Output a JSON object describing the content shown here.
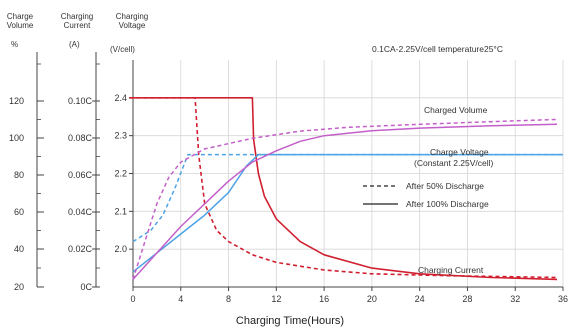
{
  "headers": {
    "volume": [
      "Charge",
      "Volume"
    ],
    "current": [
      "Charging",
      "Current"
    ],
    "voltage": [
      "Charging",
      "Voltage"
    ]
  },
  "units": {
    "volume": "%",
    "current": "(A)",
    "voltage": "(V/cell)"
  },
  "spec_text": "0.1CA-2.25V/cell   temperature25°C",
  "colors": {
    "current": "#d02030",
    "voltage": "#4da3e6",
    "volume": "#c45fc9",
    "grid": "#d6d6d6",
    "axis": "#444444"
  },
  "chart_data": {
    "type": "line",
    "title": "",
    "xlabel": "Charging Time(Hours)",
    "xlim": [
      0,
      36
    ],
    "x_ticks": [
      "0",
      "4",
      "8",
      "12",
      "16",
      "20",
      "24",
      "28",
      "32",
      "36"
    ],
    "grid": true,
    "left_axes": {
      "voltage": {
        "unit": "(V/cell)",
        "ylim": [
          1.9,
          2.5
        ],
        "ticks": [
          "2.0",
          "2.1",
          "2.2",
          "2.3",
          "2.4"
        ]
      },
      "current": {
        "unit": "(A)",
        "ticks": [
          "0C",
          "0.02C",
          "0.04C",
          "0.06C",
          "0.08C",
          "0.10C"
        ]
      },
      "volume": {
        "unit": "%",
        "ticks": [
          "20",
          "40",
          "60",
          "80",
          "100",
          "120"
        ]
      }
    },
    "annotations": {
      "charged_volume": "Charged Volume",
      "charge_voltage": "Charge Voltage",
      "constant": "(Constant 2.25V/cell)",
      "charging_current": "Charging Current"
    },
    "legend": [
      {
        "label": "After 50% Discharge",
        "style": "dashed"
      },
      {
        "label": "After 100% Discharge",
        "style": "solid"
      }
    ],
    "series": [
      {
        "group": "current",
        "style": "dashed",
        "points": [
          [
            -0.3,
            2.4
          ],
          [
            5.2,
            2.4
          ],
          [
            5.5,
            2.25
          ],
          [
            6,
            2.12
          ],
          [
            7,
            2.05
          ],
          [
            8,
            2.02
          ],
          [
            10,
            1.985
          ],
          [
            12,
            1.965
          ],
          [
            16,
            1.945
          ],
          [
            20,
            1.935
          ],
          [
            26,
            1.93
          ],
          [
            35.5,
            1.925
          ]
        ]
      },
      {
        "group": "current",
        "style": "solid",
        "points": [
          [
            -0.3,
            2.4
          ],
          [
            10,
            2.4
          ],
          [
            10.1,
            2.29
          ],
          [
            10.5,
            2.2
          ],
          [
            11,
            2.14
          ],
          [
            12,
            2.08
          ],
          [
            14,
            2.02
          ],
          [
            16,
            1.985
          ],
          [
            20,
            1.95
          ],
          [
            24,
            1.935
          ],
          [
            30,
            1.925
          ],
          [
            35.5,
            1.92
          ]
        ]
      },
      {
        "group": "voltage",
        "style": "dashed",
        "points": [
          [
            0,
            2.02
          ],
          [
            1.5,
            2.05
          ],
          [
            2.5,
            2.09
          ],
          [
            3.5,
            2.16
          ],
          [
            4.6,
            2.25
          ],
          [
            10,
            2.25
          ],
          [
            36,
            2.25
          ]
        ]
      },
      {
        "group": "voltage",
        "style": "solid",
        "points": [
          [
            0,
            1.94
          ],
          [
            2,
            1.99
          ],
          [
            4,
            2.04
          ],
          [
            6,
            2.09
          ],
          [
            8,
            2.15
          ],
          [
            9.5,
            2.22
          ],
          [
            10.5,
            2.25
          ],
          [
            36,
            2.25
          ]
        ]
      },
      {
        "group": "volume",
        "style": "dashed",
        "points": [
          [
            0,
            1.92
          ],
          [
            1,
            2.02
          ],
          [
            2,
            2.12
          ],
          [
            3,
            2.19
          ],
          [
            4,
            2.23
          ],
          [
            6,
            2.265
          ],
          [
            10,
            2.293
          ],
          [
            14,
            2.312
          ],
          [
            18,
            2.322
          ],
          [
            24,
            2.33
          ],
          [
            30,
            2.337
          ],
          [
            35.5,
            2.343
          ]
        ]
      },
      {
        "group": "volume",
        "style": "solid",
        "points": [
          [
            0,
            1.92
          ],
          [
            2,
            1.99
          ],
          [
            4,
            2.06
          ],
          [
            6,
            2.12
          ],
          [
            8,
            2.18
          ],
          [
            10,
            2.23
          ],
          [
            12,
            2.26
          ],
          [
            14,
            2.285
          ],
          [
            16,
            2.3
          ],
          [
            20,
            2.313
          ],
          [
            24,
            2.32
          ],
          [
            30,
            2.326
          ],
          [
            35.5,
            2.33
          ]
        ]
      }
    ]
  }
}
